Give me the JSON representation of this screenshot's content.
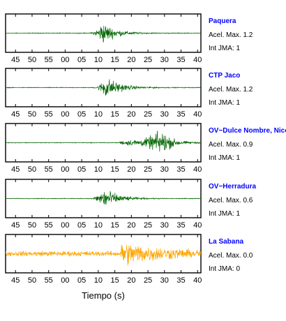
{
  "xlabel": "Tiempo (s)",
  "chart_data": {
    "type": "line",
    "xlabel": "Tiempo (s)",
    "x_tick_labels": [
      "45",
      "50",
      "55",
      "00",
      "05",
      "10",
      "15",
      "20",
      "25",
      "30",
      "35",
      "40"
    ],
    "x_tick_seconds": [
      45,
      50,
      55,
      60,
      65,
      70,
      75,
      80,
      85,
      90,
      95,
      100
    ],
    "xlim": [
      42,
      101
    ],
    "grid": false,
    "series": [
      {
        "name": "Paquera",
        "accel_label": "Acel. Max. 1.2",
        "jma_label": "Int JMA: 1",
        "color": "#006400",
        "noise": 0.03,
        "event_start": 67.0,
        "peak_time": 71.0,
        "peak_amp": 1.0,
        "decay": 3.8
      },
      {
        "name": "CTP Jaco",
        "accel_label": "Acel. Max. 1.2",
        "jma_label": "Int JMA: 1",
        "color": "#006400",
        "noise": 0.03,
        "event_start": 68.0,
        "peak_time": 72.0,
        "peak_amp": 1.0,
        "decay": 4.2
      },
      {
        "name": "OV−Dulce Nombre, Nicoya",
        "accel_label": "Acel. Max. 0.9",
        "jma_label": "Int JMA: 1",
        "color": "#006400",
        "noise": 0.03,
        "event_start": 76.5,
        "peak_time": 89.5,
        "peak_amp": 1.0,
        "decay": 3.0,
        "pre_amp": 0.18
      },
      {
        "name": "OV−Herradura",
        "accel_label": "Acel. Max. 0.6",
        "jma_label": "Int JMA: 1",
        "color": "#006400",
        "noise": 0.03,
        "event_start": 67.0,
        "peak_time": 71.5,
        "peak_amp": 1.0,
        "decay": 4.0
      },
      {
        "name": "La Sabana",
        "accel_label": "Acel. Max. 0.0",
        "jma_label": "Int JMA: 0",
        "color": "#FFA500",
        "noise": 0.22,
        "event_start": 76.7,
        "peak_time": 77.0,
        "peak_amp": 0.95,
        "decay": 12.0
      }
    ]
  }
}
